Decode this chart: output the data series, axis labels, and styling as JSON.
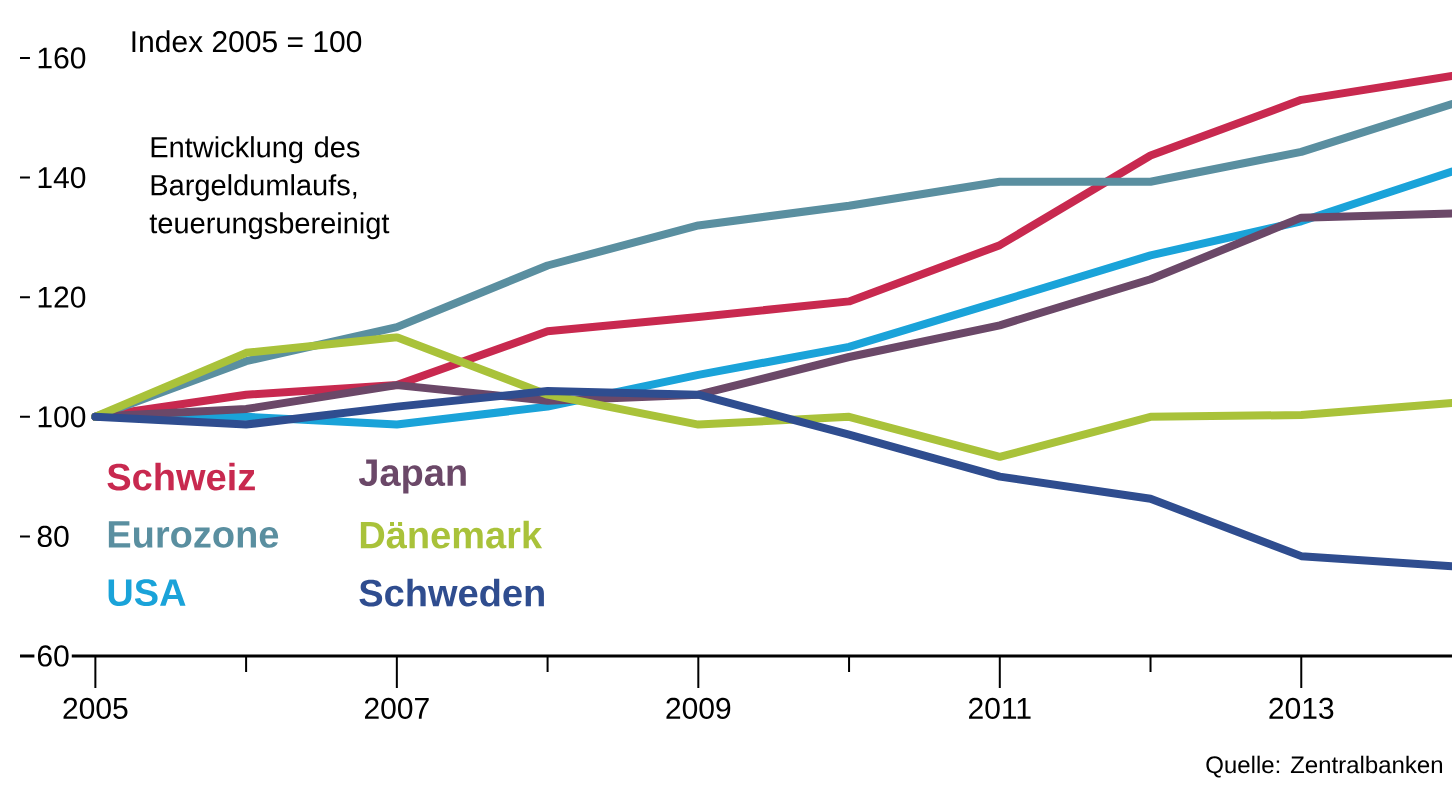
{
  "chart_data": {
    "type": "line",
    "title": "Entwicklung des Bargeldumlaufs, teuerungsbereinigt",
    "ylabel": "Index 2005 = 100",
    "annotations": [
      "Quelle: Zentralbanken"
    ],
    "x": [
      2005,
      2006,
      2007,
      2008,
      2009,
      2010,
      2011,
      2012,
      2013,
      2014
    ],
    "xlim": [
      2004.5,
      2014
    ],
    "xticks": [
      {
        "value": 2005,
        "label": "2005"
      },
      {
        "value": 2006,
        "label": null
      },
      {
        "value": 2007,
        "label": "2007"
      },
      {
        "value": 2008,
        "label": null
      },
      {
        "value": 2009,
        "label": "2009"
      },
      {
        "value": 2010,
        "label": null
      },
      {
        "value": 2011,
        "label": "2011"
      },
      {
        "value": 2012,
        "label": null
      },
      {
        "value": 2013,
        "label": "2013"
      }
    ],
    "ylim": [
      60,
      160
    ],
    "yticks": [
      60,
      80,
      100,
      120,
      140,
      160
    ],
    "legend": "bottom left",
    "marker": "none",
    "line_style": "solid",
    "series": [
      {
        "name": "Schweiz",
        "color": "#c8294f",
        "values": [
          100,
          103.7,
          105.3,
          114.3,
          116.7,
          119.3,
          128.7,
          143.7,
          153,
          157
        ]
      },
      {
        "name": "Eurozone",
        "color": "#5a8fa0",
        "values": [
          100,
          109.3,
          115,
          125.3,
          132,
          135.3,
          139.3,
          139.3,
          144.3,
          152.3
        ]
      },
      {
        "name": "USA",
        "color": "#1aa3d9",
        "values": [
          100,
          100,
          98.7,
          101.7,
          107,
          111.7,
          119.3,
          127,
          132.7,
          141
        ]
      },
      {
        "name": "Japan",
        "color": "#6b4868",
        "values": [
          100,
          101.3,
          105.3,
          102.7,
          103.7,
          110,
          115.3,
          123,
          133.3,
          134
        ]
      },
      {
        "name": "Dänemark",
        "color": "#a9c23a",
        "values": [
          100,
          110.7,
          113.3,
          103.7,
          98.7,
          100,
          93.3,
          100,
          100.3,
          102.3
        ]
      },
      {
        "name": "Schweden",
        "color": "#2f4d8f",
        "values": [
          100,
          98.7,
          101.7,
          104.3,
          103.7,
          97,
          90,
          86.3,
          76.7,
          75
        ]
      }
    ]
  }
}
